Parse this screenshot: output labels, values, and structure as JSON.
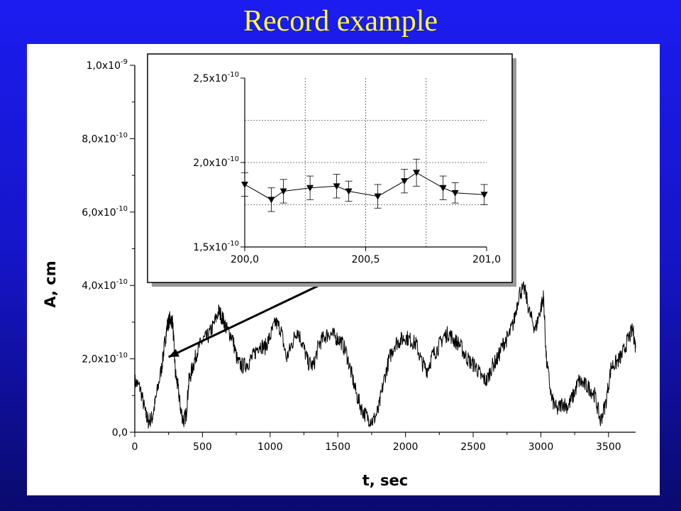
{
  "slide": {
    "title": "Record example"
  },
  "chart_data": [
    {
      "type": "line",
      "title": "",
      "xlabel": "t, sec",
      "ylabel": "A, cm",
      "xlim": [
        0,
        3700
      ],
      "ylim": [
        0,
        1e-09
      ],
      "x_ticks": [
        0,
        500,
        1000,
        1500,
        2000,
        2500,
        3000,
        3500
      ],
      "x_tick_labels": [
        "0",
        "500",
        "1000",
        "1500",
        "2000",
        "2500",
        "3000",
        "3500"
      ],
      "y_ticks": [
        0,
        2e-10,
        4e-10,
        6e-10,
        8e-10,
        1e-09
      ],
      "y_tick_labels": [
        {
          "mant": "0,0",
          "exp": ""
        },
        {
          "mant": "2,0x10",
          "exp": "-10"
        },
        {
          "mant": "4,0x10",
          "exp": "-10"
        },
        {
          "mant": "6,0x10",
          "exp": "-10"
        },
        {
          "mant": "8,0x10",
          "exp": "-10"
        },
        {
          "mant": "1,0x10",
          "exp": "-9"
        }
      ],
      "grid": false,
      "series": [
        {
          "x": [
            0,
            40,
            80,
            100,
            130,
            160,
            200,
            220,
            240,
            260,
            280,
            300,
            320,
            340,
            360,
            380,
            400,
            430,
            460,
            500,
            540,
            580,
            620,
            650,
            680,
            720,
            760,
            800,
            840,
            880,
            920,
            960,
            1000,
            1040,
            1080,
            1120,
            1160,
            1200,
            1240,
            1280,
            1320,
            1360,
            1400,
            1440,
            1480,
            1520,
            1560,
            1600,
            1640,
            1680,
            1720,
            1760,
            1800,
            1840,
            1880,
            1920,
            1960,
            2000,
            2040,
            2080,
            2120,
            2160,
            2200,
            2240,
            2280,
            2320,
            2360,
            2400,
            2440,
            2480,
            2520,
            2560,
            2600,
            2640,
            2680,
            2720,
            2760,
            2800,
            2840,
            2880,
            2920,
            2960,
            3000,
            3020,
            3040,
            3080,
            3120,
            3160,
            3200,
            3240,
            3280,
            3320,
            3360,
            3400,
            3440,
            3480,
            3520,
            3560,
            3600,
            3640,
            3680,
            3700
          ],
          "y": [
            1.4e-10,
            1.2e-10,
            5e-11,
            3e-11,
            4e-11,
            1e-10,
            1.8e-10,
            2.4e-10,
            2.9e-10,
            3.1e-10,
            3e-10,
            1.6e-10,
            1.2e-10,
            6e-11,
            3e-11,
            5e-11,
            1.4e-10,
            1.8e-10,
            2.2e-10,
            2.5e-10,
            2.6e-10,
            2.9e-10,
            3.3e-10,
            3.1e-10,
            2.8e-10,
            2.6e-10,
            1.9e-10,
            1.8e-10,
            1.9e-10,
            2.1e-10,
            2.4e-10,
            2.3e-10,
            2.6e-10,
            3e-10,
            2.8e-10,
            2e-10,
            2.4e-10,
            2.8e-10,
            2.4e-10,
            1.9e-10,
            1.8e-10,
            2.4e-10,
            2.6e-10,
            2.7e-10,
            2.6e-10,
            2.5e-10,
            2.2e-10,
            1.6e-10,
            1e-10,
            6e-11,
            4e-11,
            3e-11,
            6e-11,
            1.4e-10,
            2e-10,
            2.4e-10,
            2.5e-10,
            2.6e-10,
            2.5e-10,
            2.4e-10,
            1.9e-10,
            1.7e-10,
            2.1e-10,
            2.3e-10,
            2.6e-10,
            2.7e-10,
            2.5e-10,
            2.4e-10,
            2.1e-10,
            1.9e-10,
            1.8e-10,
            1.5e-10,
            1.4e-10,
            1.8e-10,
            2e-10,
            2.4e-10,
            2.6e-10,
            3e-10,
            3.8e-10,
            3.9e-10,
            3.2e-10,
            2.8e-10,
            3.4e-10,
            3.7e-10,
            2e-10,
            9e-11,
            6e-11,
            8e-11,
            7e-11,
            1e-10,
            1.4e-10,
            1.3e-10,
            1.2e-10,
            1e-10,
            3e-11,
            8e-11,
            1.8e-10,
            1.9e-10,
            2.1e-10,
            2.5e-10,
            2.8e-10,
            2.3e-10
          ]
        }
      ],
      "annotations": [
        "arrow from inset to region near t=250 s"
      ]
    },
    {
      "type": "line",
      "title": "",
      "xlabel": "",
      "ylabel": "",
      "xlim": [
        200.0,
        201.0
      ],
      "ylim": [
        1.5e-10,
        2.5e-10
      ],
      "x_ticks": [
        200.0,
        200.5,
        201.0
      ],
      "x_tick_labels": [
        "200,0",
        "200,5",
        "201,0"
      ],
      "y_ticks": [
        1.5e-10,
        2e-10,
        2.5e-10
      ],
      "y_tick_labels": [
        {
          "mant": "1,5x10",
          "exp": "-10"
        },
        {
          "mant": "2,0x10",
          "exp": "-10"
        },
        {
          "mant": "2,5x10",
          "exp": "-10"
        }
      ],
      "grid": true,
      "series": [
        {
          "marker": "triangle-down",
          "x": [
            200.0,
            200.11,
            200.16,
            200.27,
            200.38,
            200.43,
            200.55,
            200.66,
            200.71,
            200.82,
            200.87,
            200.99
          ],
          "y": [
            1.87e-10,
            1.78e-10,
            1.83e-10,
            1.85e-10,
            1.86e-10,
            1.83e-10,
            1.8e-10,
            1.89e-10,
            1.94e-10,
            1.85e-10,
            1.82e-10,
            1.81e-10
          ],
          "error": [
            7e-12,
            7e-12,
            7e-12,
            7e-12,
            7e-12,
            6e-12,
            7e-12,
            7e-12,
            8e-12,
            7e-12,
            6e-12,
            6e-12
          ]
        }
      ]
    }
  ]
}
